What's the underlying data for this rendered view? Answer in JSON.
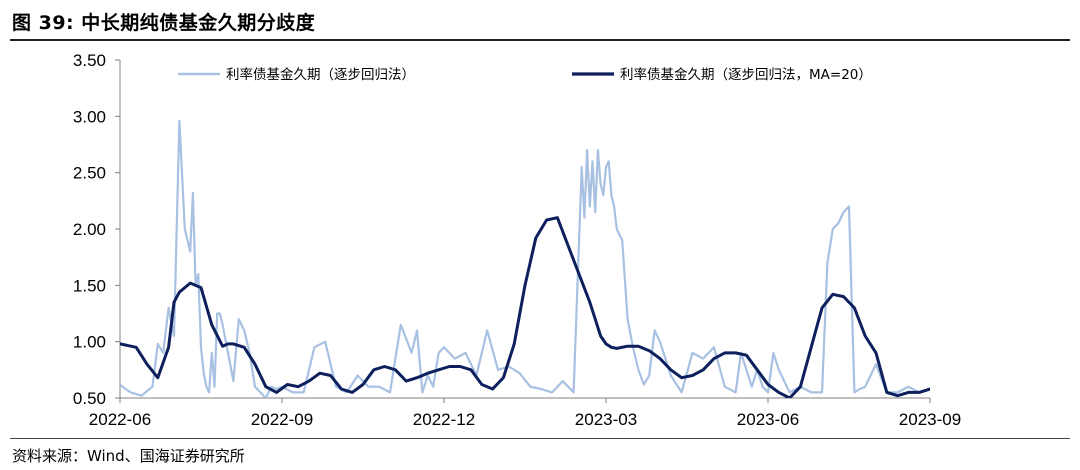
{
  "figure": {
    "title": "图 39:  中长期纯债基金久期分歧度",
    "source": "资料来源：Wind、国海证券研究所"
  },
  "colors": {
    "raw_series": "#a8c1e2",
    "ma_series": "#0d1f5c",
    "axis": "#808080"
  },
  "chart_data": {
    "type": "line",
    "title": "",
    "xlabel": "",
    "ylabel": "",
    "ylim": [
      0.5,
      3.5
    ],
    "y_ticks": [
      "3.50",
      "3.00",
      "2.50",
      "2.00",
      "1.50",
      "1.00",
      "0.50"
    ],
    "y_tick_values": [
      3.5,
      3.0,
      2.5,
      2.0,
      1.5,
      1.0,
      0.5
    ],
    "x_ticks": [
      "2022-06",
      "2022-09",
      "2022-12",
      "2023-03",
      "2023-06",
      "2023-09"
    ],
    "x_tick_months": [
      0,
      3,
      6,
      9,
      12,
      15
    ],
    "x_range_months": [
      0,
      15
    ],
    "grid": false,
    "legend_position": "top",
    "series": [
      {
        "name": "利率债基金久期（逐步回归法）",
        "style": "raw",
        "x": [
          0.0,
          0.1,
          0.2,
          0.4,
          0.6,
          0.7,
          0.8,
          0.9,
          1.0,
          1.1,
          1.2,
          1.3,
          1.35,
          1.4,
          1.45,
          1.5,
          1.55,
          1.6,
          1.65,
          1.7,
          1.75,
          1.8,
          1.85,
          1.9,
          2.0,
          2.1,
          2.2,
          2.3,
          2.4,
          2.5,
          2.6,
          2.7,
          2.8,
          2.9,
          3.0,
          3.2,
          3.4,
          3.6,
          3.8,
          4.0,
          4.2,
          4.4,
          4.6,
          4.8,
          5.0,
          5.2,
          5.4,
          5.5,
          5.6,
          5.7,
          5.8,
          5.9,
          6.0,
          6.2,
          6.4,
          6.6,
          6.8,
          7.0,
          7.2,
          7.4,
          7.6,
          7.8,
          8.0,
          8.2,
          8.4,
          8.55,
          8.6,
          8.65,
          8.7,
          8.75,
          8.8,
          8.85,
          8.9,
          8.95,
          9.0,
          9.05,
          9.1,
          9.15,
          9.2,
          9.3,
          9.4,
          9.5,
          9.6,
          9.7,
          9.8,
          9.9,
          10.0,
          10.2,
          10.4,
          10.6,
          10.8,
          11.0,
          11.2,
          11.4,
          11.5,
          11.6,
          11.7,
          11.8,
          11.9,
          12.0,
          12.1,
          12.2,
          12.4,
          12.6,
          12.8,
          13.0,
          13.1,
          13.2,
          13.3,
          13.4,
          13.5,
          13.6,
          13.7,
          13.8,
          13.9,
          14.0,
          14.2,
          14.4,
          14.6,
          14.8,
          15.0
        ],
        "y": [
          0.62,
          0.58,
          0.55,
          0.52,
          0.6,
          0.98,
          0.9,
          1.3,
          1.05,
          2.96,
          2.0,
          1.8,
          2.32,
          1.5,
          1.6,
          0.95,
          0.72,
          0.6,
          0.55,
          0.9,
          0.6,
          1.25,
          1.25,
          1.15,
          0.9,
          0.65,
          1.2,
          1.1,
          0.9,
          0.6,
          0.55,
          0.5,
          0.6,
          0.58,
          0.6,
          0.55,
          0.55,
          0.95,
          1.0,
          0.6,
          0.55,
          0.7,
          0.6,
          0.6,
          0.55,
          1.15,
          0.9,
          1.1,
          0.55,
          0.7,
          0.6,
          0.9,
          0.95,
          0.85,
          0.9,
          0.7,
          1.1,
          0.75,
          0.78,
          0.72,
          0.6,
          0.58,
          0.55,
          0.65,
          0.55,
          2.55,
          2.1,
          2.7,
          2.2,
          2.6,
          2.15,
          2.7,
          2.4,
          2.3,
          2.55,
          2.6,
          2.3,
          2.2,
          2.0,
          1.9,
          1.2,
          0.95,
          0.75,
          0.62,
          0.7,
          1.1,
          1.0,
          0.7,
          0.55,
          0.9,
          0.85,
          0.95,
          0.6,
          0.55,
          0.9,
          0.75,
          0.6,
          0.75,
          0.6,
          0.55,
          0.9,
          0.75,
          0.55,
          0.6,
          0.55,
          0.55,
          1.7,
          2.0,
          2.05,
          2.15,
          2.2,
          0.55,
          0.58,
          0.6,
          0.7,
          0.8,
          0.55,
          0.55,
          0.6,
          0.55,
          0.58
        ]
      },
      {
        "name": "利率债基金久期（逐步回归法，MA=20）",
        "style": "ma",
        "x": [
          0.0,
          0.3,
          0.5,
          0.7,
          0.9,
          1.0,
          1.1,
          1.3,
          1.5,
          1.7,
          1.9,
          2.0,
          2.1,
          2.3,
          2.5,
          2.7,
          2.9,
          3.1,
          3.3,
          3.5,
          3.7,
          3.9,
          4.1,
          4.3,
          4.5,
          4.7,
          4.9,
          5.1,
          5.3,
          5.5,
          5.7,
          5.9,
          6.1,
          6.3,
          6.5,
          6.7,
          6.9,
          7.1,
          7.3,
          7.5,
          7.7,
          7.9,
          8.1,
          8.3,
          8.5,
          8.7,
          8.8,
          8.9,
          9.0,
          9.1,
          9.2,
          9.4,
          9.6,
          9.8,
          10.0,
          10.2,
          10.4,
          10.6,
          10.8,
          11.0,
          11.2,
          11.4,
          11.6,
          11.8,
          12.0,
          12.2,
          12.4,
          12.6,
          12.8,
          13.0,
          13.2,
          13.4,
          13.6,
          13.8,
          14.0,
          14.2,
          14.4,
          14.6,
          14.8,
          15.0
        ],
        "y": [
          0.98,
          0.95,
          0.8,
          0.68,
          0.95,
          1.35,
          1.44,
          1.52,
          1.48,
          1.15,
          0.96,
          0.98,
          0.98,
          0.95,
          0.8,
          0.6,
          0.55,
          0.62,
          0.6,
          0.65,
          0.72,
          0.7,
          0.58,
          0.55,
          0.62,
          0.75,
          0.78,
          0.75,
          0.65,
          0.68,
          0.72,
          0.75,
          0.78,
          0.78,
          0.75,
          0.62,
          0.58,
          0.68,
          0.98,
          1.5,
          1.92,
          2.08,
          2.1,
          1.85,
          1.6,
          1.35,
          1.2,
          1.05,
          0.98,
          0.95,
          0.94,
          0.96,
          0.96,
          0.92,
          0.85,
          0.75,
          0.68,
          0.7,
          0.75,
          0.85,
          0.9,
          0.9,
          0.88,
          0.75,
          0.62,
          0.55,
          0.5,
          0.6,
          0.95,
          1.3,
          1.42,
          1.4,
          1.3,
          1.05,
          0.9,
          0.55,
          0.52,
          0.55,
          0.55,
          0.58
        ]
      }
    ]
  }
}
